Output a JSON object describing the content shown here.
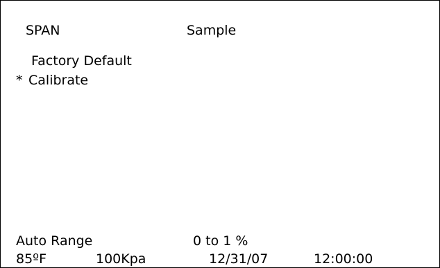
{
  "header": {
    "mode": "SPAN",
    "gas": "Sample"
  },
  "menu": {
    "items": [
      {
        "marker": "",
        "label": "Factory Default"
      },
      {
        "marker": "*",
        "label": "Calibrate"
      }
    ]
  },
  "status": {
    "range_mode": "Auto Range",
    "range_value": "0 to 1 %",
    "temperature": "85ºF",
    "pressure": "100Kpa",
    "date": "12/31/07",
    "time": "12:00:00"
  }
}
